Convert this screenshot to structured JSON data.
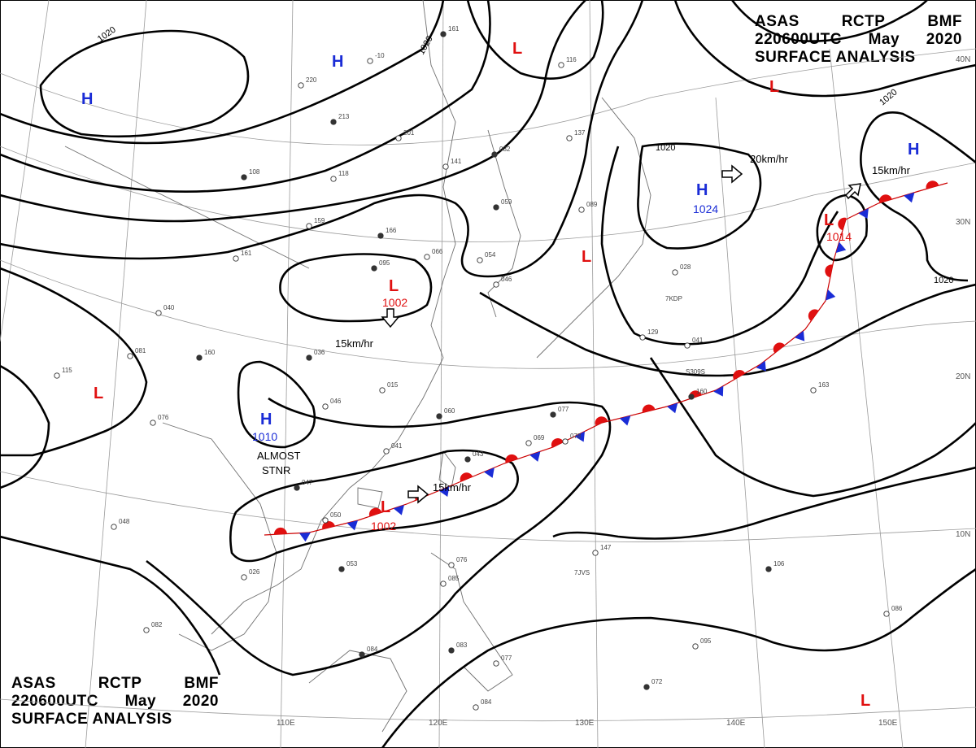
{
  "header_top": {
    "line1": [
      "ASAS",
      "RCTP",
      "BMF"
    ],
    "line2": [
      "220600UTC",
      "May",
      "2020"
    ],
    "line3": "SURFACE ANALYSIS"
  },
  "header_bottom": {
    "line1": [
      "ASAS",
      "RCTP",
      "BMF"
    ],
    "line2": [
      "220600UTC",
      "May",
      "2020"
    ],
    "line3": "SURFACE ANALYSIS"
  },
  "lon_labels": [
    "110E",
    "120E",
    "130E",
    "140E",
    "150E"
  ],
  "lat_labels": [
    "40N",
    "30N",
    "20N",
    "10N"
  ],
  "highs": [
    {
      "letter": "H",
      "value": ""
    },
    {
      "letter": "H",
      "value": ""
    },
    {
      "letter": "H",
      "value": ""
    },
    {
      "letter": "H",
      "value": "1024"
    },
    {
      "letter": "H",
      "value": ""
    },
    {
      "letter": "H",
      "value": "1010"
    }
  ],
  "lows": [
    {
      "letter": "L",
      "value": ""
    },
    {
      "letter": "L",
      "value": ""
    },
    {
      "letter": "L",
      "value": ""
    },
    {
      "letter": "L",
      "value": "1014"
    },
    {
      "letter": "L",
      "value": "1002"
    },
    {
      "letter": "L",
      "value": ""
    },
    {
      "letter": "L",
      "value": "1002"
    },
    {
      "letter": "L",
      "value": ""
    }
  ],
  "isobar_labels": [
    "1020",
    "1020",
    "1020",
    "1020",
    "1020"
  ],
  "motion_labels": [
    "20km/hr",
    "15km/hr",
    "15km/hr",
    "15km/hr"
  ],
  "annotations": [
    "ALMOST",
    "STNR"
  ],
  "ship_ids": [
    "7KDP",
    "S309S",
    "7JVS"
  ],
  "station_labels": [
    "161",
    "-10",
    "220",
    "213",
    "201",
    "141",
    "082",
    "116",
    "137",
    "108",
    "118",
    "159",
    "166",
    "066",
    "054",
    "059",
    "089",
    "161",
    "095",
    "028",
    "040",
    "160",
    "081",
    "115",
    "036",
    "015",
    "046",
    "060",
    "076",
    "041",
    "047",
    "050",
    "026",
    "053",
    "048",
    "082",
    "084",
    "076",
    "085",
    "083",
    "077",
    "084",
    "077",
    "078",
    "069",
    "043",
    "041",
    "163",
    "160",
    "129",
    "147",
    "106",
    "095",
    "086",
    "072",
    "046"
  ],
  "colors": {
    "high": "#1a2cd6",
    "low": "#e01010",
    "isobar": "#000000",
    "grid": "#9a9a9a",
    "coast": "#6f6f6f"
  }
}
